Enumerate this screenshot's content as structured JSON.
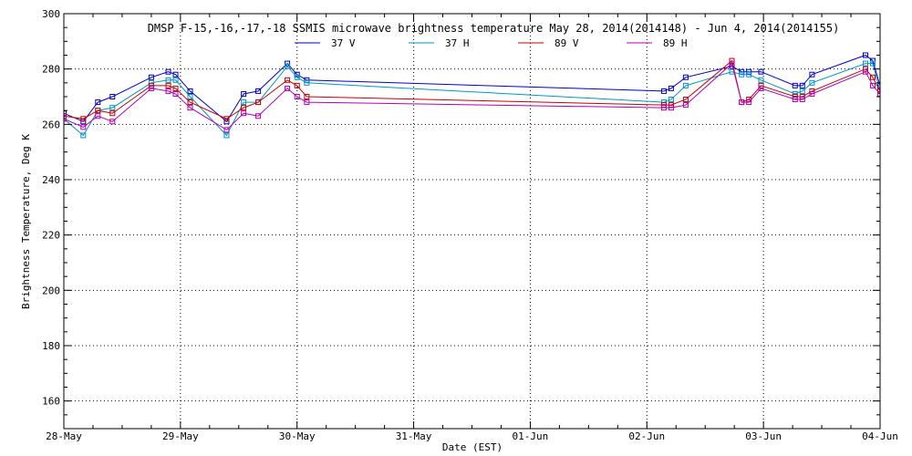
{
  "chart_data": {
    "type": "line",
    "title": "DMSP F-15,-16,-17,-18 SSMIS microwave brightness temperature May 28, 2014(2014148) - Jun  4, 2014(2014155)",
    "xlabel": "Date (EST)",
    "ylabel": "Brightness Temperature, Deg K",
    "xlim": [
      "2014-05-28T00:00",
      "2014-06-04T00:00"
    ],
    "ylim": [
      150,
      300
    ],
    "yticks": [
      160,
      180,
      200,
      220,
      240,
      260,
      280,
      300
    ],
    "xtick_labels": [
      "28-May",
      "29-May",
      "30-May",
      "31-May",
      "01-Jun",
      "02-Jun",
      "03-Jun",
      "04-Jun"
    ],
    "grid": true,
    "legend_position": "top",
    "series": [
      {
        "name": "37 V",
        "color": "#0000c8",
        "points": [
          [
            "2014-05-28T00:00",
            264
          ],
          [
            "2014-05-28T04:00",
            261
          ],
          [
            "2014-05-28T07:00",
            268
          ],
          [
            "2014-05-28T10:00",
            270
          ],
          [
            "2014-05-28T18:00",
            277
          ],
          [
            "2014-05-28T21:30",
            279
          ],
          [
            "2014-05-28T23:00",
            278
          ],
          [
            "2014-05-29T02:00",
            272
          ],
          [
            "2014-05-29T09:30",
            261
          ],
          [
            "2014-05-29T13:00",
            271
          ],
          [
            "2014-05-29T16:00",
            272
          ],
          [
            "2014-05-29T22:00",
            282
          ],
          [
            "2014-05-30T00:00",
            278
          ],
          [
            "2014-05-30T02:00",
            276
          ],
          [
            "2014-06-02T03:30",
            272
          ],
          [
            "2014-06-02T05:00",
            273
          ],
          [
            "2014-06-02T08:00",
            277
          ],
          [
            "2014-06-02T17:30",
            281
          ],
          [
            "2014-06-02T19:30",
            279
          ],
          [
            "2014-06-02T21:00",
            279
          ],
          [
            "2014-06-02T23:30",
            279
          ],
          [
            "2014-06-03T06:30",
            274
          ],
          [
            "2014-06-03T08:00",
            274
          ],
          [
            "2014-06-03T10:00",
            278
          ],
          [
            "2014-06-03T21:00",
            285
          ],
          [
            "2014-06-03T22:30",
            283
          ],
          [
            "2014-06-04T00:00",
            274
          ]
        ]
      },
      {
        "name": "37 H",
        "color": "#0096c8",
        "points": [
          [
            "2014-05-28T00:00",
            262
          ],
          [
            "2014-05-28T04:00",
            256
          ],
          [
            "2014-05-28T07:00",
            265
          ],
          [
            "2014-05-28T10:00",
            266
          ],
          [
            "2014-05-28T18:00",
            275
          ],
          [
            "2014-05-28T21:30",
            276
          ],
          [
            "2014-05-28T23:00",
            276
          ],
          [
            "2014-05-29T02:00",
            270
          ],
          [
            "2014-05-29T09:30",
            256
          ],
          [
            "2014-05-29T13:00",
            268
          ],
          [
            "2014-05-29T16:00",
            268
          ],
          [
            "2014-05-29T22:00",
            281
          ],
          [
            "2014-05-30T00:00",
            277
          ],
          [
            "2014-05-30T02:00",
            275
          ],
          [
            "2014-06-02T03:30",
            268
          ],
          [
            "2014-06-02T05:00",
            269
          ],
          [
            "2014-06-02T08:00",
            274
          ],
          [
            "2014-06-02T17:30",
            279
          ],
          [
            "2014-06-02T19:30",
            278
          ],
          [
            "2014-06-02T21:00",
            278
          ],
          [
            "2014-06-02T23:30",
            276
          ],
          [
            "2014-06-03T06:30",
            271
          ],
          [
            "2014-06-03T08:00",
            272
          ],
          [
            "2014-06-03T10:00",
            275
          ],
          [
            "2014-06-03T21:00",
            282
          ],
          [
            "2014-06-03T22:30",
            282
          ],
          [
            "2014-06-04T00:00",
            272
          ]
        ]
      },
      {
        "name": "89 V",
        "color": "#c80000",
        "points": [
          [
            "2014-05-28T00:00",
            263
          ],
          [
            "2014-05-28T04:00",
            262
          ],
          [
            "2014-05-28T07:00",
            265
          ],
          [
            "2014-05-28T10:00",
            264
          ],
          [
            "2014-05-28T18:00",
            274
          ],
          [
            "2014-05-28T21:30",
            274
          ],
          [
            "2014-05-28T23:00",
            273
          ],
          [
            "2014-05-29T02:00",
            268
          ],
          [
            "2014-05-29T09:30",
            262
          ],
          [
            "2014-05-29T13:00",
            266
          ],
          [
            "2014-05-29T16:00",
            268
          ],
          [
            "2014-05-29T22:00",
            276
          ],
          [
            "2014-05-30T00:00",
            274
          ],
          [
            "2014-05-30T02:00",
            270
          ],
          [
            "2014-06-02T03:30",
            267
          ],
          [
            "2014-06-02T05:00",
            267
          ],
          [
            "2014-06-02T08:00",
            269
          ],
          [
            "2014-06-02T17:30",
            283
          ],
          [
            "2014-06-02T19:30",
            268
          ],
          [
            "2014-06-02T21:00",
            269
          ],
          [
            "2014-06-02T23:30",
            274
          ],
          [
            "2014-06-03T06:30",
            270
          ],
          [
            "2014-06-03T08:00",
            270
          ],
          [
            "2014-06-03T10:00",
            272
          ],
          [
            "2014-06-03T21:00",
            280
          ],
          [
            "2014-06-03T22:30",
            277
          ],
          [
            "2014-06-04T00:00",
            272
          ]
        ]
      },
      {
        "name": "89 H",
        "color": "#b400b4",
        "points": [
          [
            "2014-05-28T00:00",
            262
          ],
          [
            "2014-05-28T04:00",
            259
          ],
          [
            "2014-05-28T07:00",
            263
          ],
          [
            "2014-05-28T10:00",
            261
          ],
          [
            "2014-05-28T18:00",
            273
          ],
          [
            "2014-05-28T21:30",
            272
          ],
          [
            "2014-05-28T23:00",
            271
          ],
          [
            "2014-05-29T02:00",
            266
          ],
          [
            "2014-05-29T09:30",
            258
          ],
          [
            "2014-05-29T13:00",
            264
          ],
          [
            "2014-05-29T16:00",
            263
          ],
          [
            "2014-05-29T22:00",
            273
          ],
          [
            "2014-05-30T00:00",
            270
          ],
          [
            "2014-05-30T02:00",
            268
          ],
          [
            "2014-06-02T03:30",
            266
          ],
          [
            "2014-06-02T05:00",
            266
          ],
          [
            "2014-06-02T08:00",
            267
          ],
          [
            "2014-06-02T17:30",
            282
          ],
          [
            "2014-06-02T19:30",
            268
          ],
          [
            "2014-06-02T21:00",
            268
          ],
          [
            "2014-06-02T23:30",
            273
          ],
          [
            "2014-06-03T06:30",
            269
          ],
          [
            "2014-06-03T08:00",
            269
          ],
          [
            "2014-06-03T10:00",
            271
          ],
          [
            "2014-06-03T21:00",
            279
          ],
          [
            "2014-06-03T22:30",
            274
          ],
          [
            "2014-06-04T00:00",
            271
          ]
        ]
      }
    ]
  }
}
